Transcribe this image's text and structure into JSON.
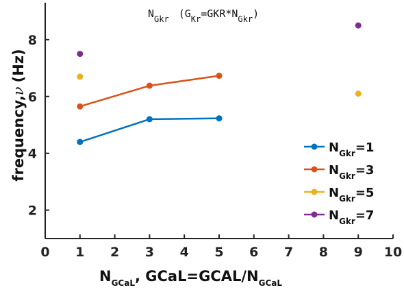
{
  "chart_data": {
    "type": "line",
    "title": {
      "main": "N",
      "main_sub": "Gkr",
      "paren_open": "(G",
      "paren_sub": "Kr",
      "eq": "=GKR*N",
      "eq_sub": "Gkr",
      "paren_close": ")"
    },
    "xlabel": {
      "main": "N",
      "sub": "GCaL",
      "rest": ", GCaL=GCAL/N",
      "sub2": "GCaL"
    },
    "ylabel": {
      "main": "frequency,",
      "nu": "ν",
      "unit": "(Hz)"
    },
    "xlim": [
      0,
      10
    ],
    "ylim": [
      1,
      9.3
    ],
    "xticks": [
      "0",
      "1",
      "2",
      "3",
      "4",
      "5",
      "6",
      "7",
      "8",
      "9",
      "10"
    ],
    "yticks": [
      "2",
      "4",
      "6",
      "8"
    ],
    "grid": false,
    "legend_position": "bottom-right",
    "series": [
      {
        "legend_main": "N",
        "legend_sub": "Gkr",
        "legend_value": "=1",
        "color": "#0072BD",
        "points": [
          [
            1,
            4.4
          ],
          [
            3,
            5.2
          ],
          [
            5,
            5.23
          ]
        ]
      },
      {
        "legend_main": "N",
        "legend_sub": "Gkr",
        "legend_value": "=3",
        "color": "#D95319",
        "points": [
          [
            1,
            5.65
          ],
          [
            3,
            6.38
          ],
          [
            5,
            6.73
          ]
        ]
      },
      {
        "legend_main": "N",
        "legend_sub": "Gkr",
        "legend_value": "=5",
        "color": "#EDB120",
        "points": [
          [
            1,
            6.7
          ],
          [
            9,
            6.1
          ]
        ],
        "markers_only": true
      },
      {
        "legend_main": "N",
        "legend_sub": "Gkr",
        "legend_value": "=7",
        "color": "#7E2F8E",
        "points": [
          [
            1,
            7.5
          ],
          [
            9,
            8.5
          ]
        ],
        "markers_only": true
      }
    ]
  }
}
